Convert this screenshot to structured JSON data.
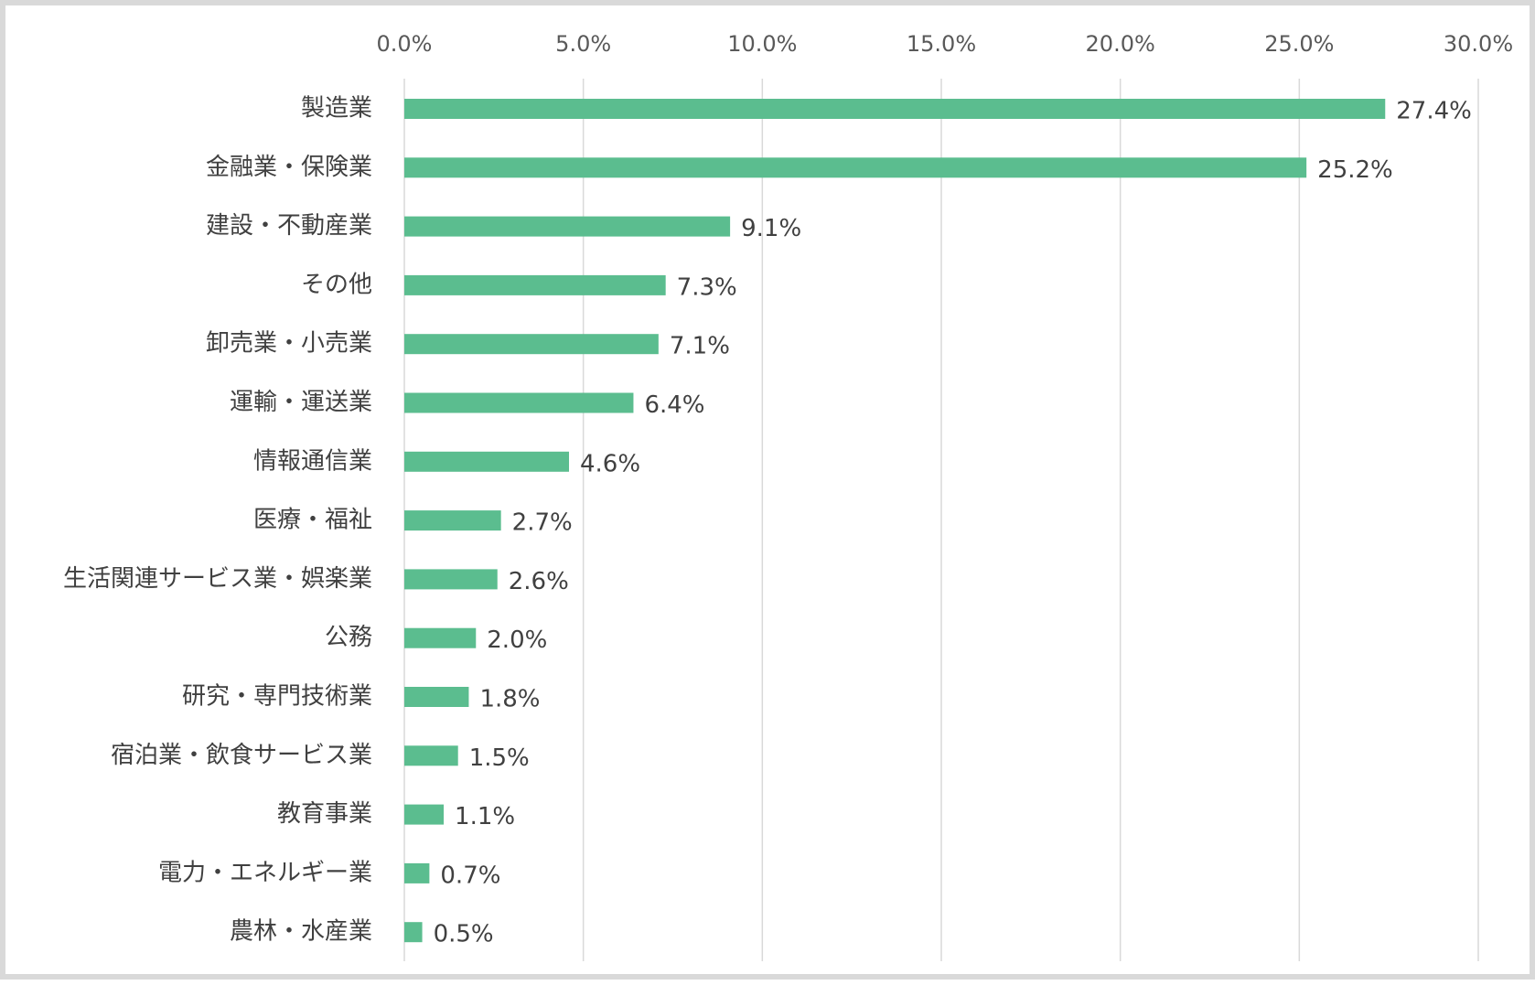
{
  "chart_data": {
    "type": "bar",
    "orientation": "horizontal",
    "categories": [
      "製造業",
      "金融業・保険業",
      "建設・不動産業",
      "その他",
      "卸売業・小売業",
      "運輸・運送業",
      "情報通信業",
      "医療・福祉",
      "生活関連サービス業・娯楽業",
      "公務",
      "研究・専門技術業",
      "宿泊業・飲食サービス業",
      "教育事業",
      "電力・エネルギー業",
      "農林・水産業"
    ],
    "values": [
      27.4,
      25.2,
      9.1,
      7.3,
      7.1,
      6.4,
      4.6,
      2.7,
      2.6,
      2.0,
      1.8,
      1.5,
      1.1,
      0.7,
      0.5
    ],
    "data_labels": [
      "27.4%",
      "25.2%",
      "9.1%",
      "7.3%",
      "7.1%",
      "6.4%",
      "4.6%",
      "2.7%",
      "2.6%",
      "2.0%",
      "1.8%",
      "1.5%",
      "1.1%",
      "0.7%",
      "0.5%"
    ],
    "x_ticks": [
      0,
      5,
      10,
      15,
      20,
      25,
      30
    ],
    "x_tick_labels": [
      "0.0%",
      "5.0%",
      "10.0%",
      "15.0%",
      "20.0%",
      "25.0%",
      "30.0%"
    ],
    "xlim": [
      0,
      30
    ],
    "x_axis_position": "top",
    "grid": "vertical",
    "legend": "none",
    "title": "",
    "xlabel": "",
    "ylabel": "",
    "colors": {
      "bar": "#5bbd8f",
      "grid": "#d9d9d9",
      "frame": "#d9d9d9",
      "text": "#404040",
      "tick_text": "#595959"
    }
  }
}
